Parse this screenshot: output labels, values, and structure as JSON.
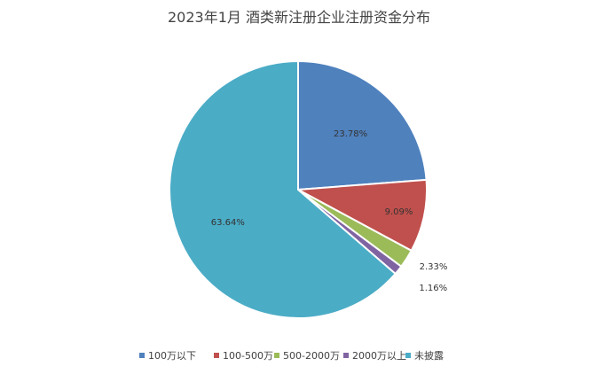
{
  "chart_data": {
    "type": "pie",
    "title": "2023年1月 酒类新注册企业注册资金分布",
    "categories": [
      "100万以下",
      "100-500万",
      "500-2000万",
      "2000万以上",
      "未披露"
    ],
    "values": [
      23.78,
      9.09,
      2.33,
      1.16,
      63.64
    ],
    "data_labels": [
      "23.78%",
      "9.09%",
      "2.33%",
      "1.16%",
      "63.64%"
    ],
    "colors": [
      "#4f81bd",
      "#c0504d",
      "#9bbb59",
      "#8064a2",
      "#4bacc6"
    ],
    "start_angle": "12 o'clock, clockwise",
    "legend_position": "bottom"
  }
}
